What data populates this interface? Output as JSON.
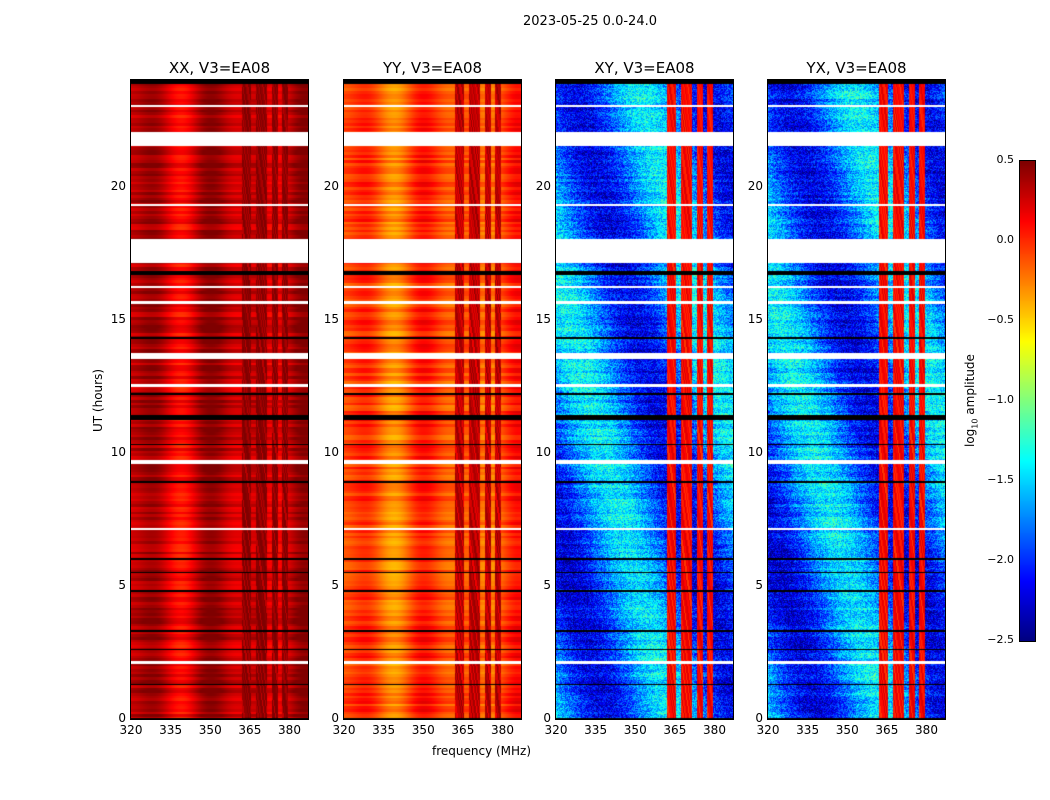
{
  "figure": {
    "suptitle": "2023-05-25 0.0-24.0"
  },
  "chart_data": {
    "type": "heatmap",
    "title": "2023-05-25 0.0-24.0",
    "xlabel": "frequency (MHz)",
    "ylabel": "UT (hours)",
    "xlim": [
      320,
      387
    ],
    "ylim": [
      0,
      24
    ],
    "xticks": [
      "320",
      "335",
      "350",
      "365",
      "380"
    ],
    "yticks": [
      "0",
      "5",
      "10",
      "15",
      "20"
    ],
    "panels": [
      {
        "title": "XX, V3=EA08",
        "base_level": 0.3,
        "rfi_level": 0.45,
        "cmap": "jet"
      },
      {
        "title": "YY, V3=EA08",
        "base_level": -0.1,
        "rfi_level": 0.3,
        "cmap": "jet"
      },
      {
        "title": "XY, V3=EA08",
        "base_level": -1.8,
        "rfi_level": 0.1,
        "cmap": "jet"
      },
      {
        "title": "YX, V3=EA08",
        "base_level": -1.8,
        "rfi_level": 0.1,
        "cmap": "jet"
      }
    ],
    "rfi_channels_mhz": [
      [
        362,
        366
      ],
      [
        367,
        372
      ],
      [
        373,
        376
      ],
      [
        377,
        380
      ]
    ],
    "flagged_hours_white": [
      [
        17.15,
        18.05
      ],
      [
        21.55,
        22.05
      ],
      [
        13.55,
        13.75
      ],
      [
        12.5,
        12.6
      ],
      [
        9.6,
        9.75
      ],
      [
        7.1,
        7.2
      ],
      [
        2.1,
        2.2
      ],
      [
        19.3,
        19.38
      ],
      [
        23.0,
        23.08
      ],
      [
        15.6,
        15.7
      ],
      [
        16.2,
        16.3
      ]
    ],
    "flagged_hours_black": [
      [
        16.7,
        16.85
      ],
      [
        11.25,
        11.45
      ],
      [
        0.0,
        0.05
      ],
      [
        23.85,
        24.0
      ],
      [
        6.0,
        6.05
      ],
      [
        5.5,
        5.55
      ],
      [
        4.8,
        4.85
      ],
      [
        3.3,
        3.35
      ],
      [
        2.6,
        2.65
      ],
      [
        1.3,
        1.35
      ],
      [
        8.9,
        8.95
      ],
      [
        10.3,
        10.35
      ],
      [
        14.3,
        14.35
      ],
      [
        12.2,
        12.25
      ]
    ],
    "colorbar": {
      "label": "log10 amplitude",
      "range": [
        -2.5,
        0.5
      ],
      "ticks": [
        "0.5",
        "0.0",
        "−0.5",
        "−1.0",
        "−1.5",
        "−2.0",
        "−2.5"
      ]
    }
  }
}
